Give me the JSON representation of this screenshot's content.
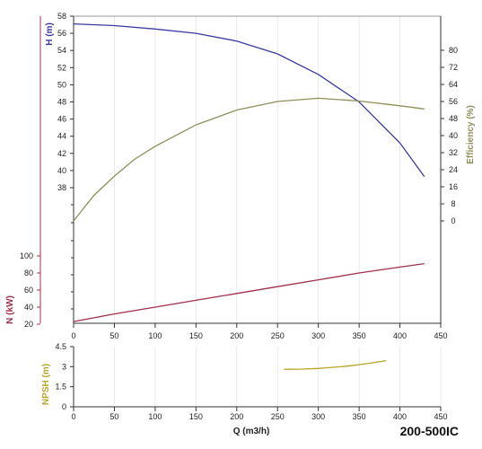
{
  "model_label": "200-500IC",
  "colors": {
    "head": "#3a3aa0",
    "efficiency": "#8f8f5a",
    "power": "#a0304a",
    "npsh": "#b8a528",
    "axis": "#333333",
    "grid": "#dddddd"
  },
  "chart_data": [
    {
      "type": "line",
      "panel": "head-efficiency",
      "xlabel": "",
      "xlim": [
        0,
        450
      ],
      "x_ticks": [
        "0",
        "50",
        "100",
        "150",
        "200",
        "250",
        "300",
        "350",
        "400",
        "450"
      ],
      "y_axes": [
        {
          "key": "head",
          "label": "H (m)",
          "side": "left",
          "ylim": [
            0,
            58
          ],
          "ticks": [
            "38",
            "40",
            "42",
            "44",
            "46",
            "48",
            "50",
            "52",
            "54",
            "56",
            "58"
          ]
        },
        {
          "key": "efficiency",
          "label": "Efficiency (%)",
          "side": "right",
          "ylim": [
            0,
            88
          ],
          "ticks": [
            "0",
            "8",
            "16",
            "24",
            "32",
            "40",
            "48",
            "56",
            "64",
            "72",
            "80"
          ]
        }
      ],
      "series": [
        {
          "key": "head",
          "axis": "head",
          "x": [
            0,
            50,
            100,
            150,
            200,
            250,
            300,
            350,
            400,
            430
          ],
          "y": [
            57.1,
            56.9,
            56.5,
            56.0,
            55.1,
            53.6,
            51.2,
            48.0,
            43.2,
            39.3
          ]
        },
        {
          "key": "efficiency",
          "axis": "efficiency",
          "x": [
            0,
            25,
            50,
            75,
            100,
            150,
            200,
            250,
            300,
            350,
            400,
            430
          ],
          "y": [
            0,
            12,
            21,
            29,
            35,
            45,
            52,
            56,
            57.5,
            56.2,
            54,
            52.5
          ]
        }
      ]
    },
    {
      "type": "line",
      "panel": "power",
      "xlim": [
        0,
        450
      ],
      "x_ticks": [
        "0",
        "50",
        "100",
        "150",
        "200",
        "250",
        "300",
        "350",
        "400",
        "450"
      ],
      "y_axes": [
        {
          "key": "power",
          "label": "N (kW)",
          "side": "left",
          "ylim": [
            20,
            100
          ],
          "ticks": [
            "20",
            "40",
            "60",
            "80",
            "100"
          ]
        }
      ],
      "series": [
        {
          "key": "power",
          "axis": "power",
          "x": [
            0,
            50,
            100,
            150,
            200,
            250,
            300,
            350,
            400,
            430
          ],
          "y": [
            23,
            32,
            40,
            48,
            56,
            64,
            72,
            80,
            87,
            91
          ]
        }
      ]
    },
    {
      "type": "line",
      "panel": "npsh",
      "xlabel": "Q (m3/h)",
      "xlim": [
        0,
        450
      ],
      "x_ticks": [
        "0",
        "50",
        "100",
        "150",
        "200",
        "250",
        "300",
        "350",
        "400",
        "450"
      ],
      "y_axes": [
        {
          "key": "npsh",
          "label": "NPSH (m)",
          "side": "left",
          "ylim": [
            0,
            4.5
          ],
          "ticks": [
            "0",
            "1.5",
            "3",
            "4.5"
          ]
        }
      ],
      "series": [
        {
          "key": "npsh",
          "axis": "npsh",
          "x": [
            258,
            280,
            300,
            320,
            340,
            360,
            383
          ],
          "y": [
            2.8,
            2.82,
            2.87,
            2.96,
            3.07,
            3.23,
            3.45
          ]
        }
      ]
    }
  ]
}
